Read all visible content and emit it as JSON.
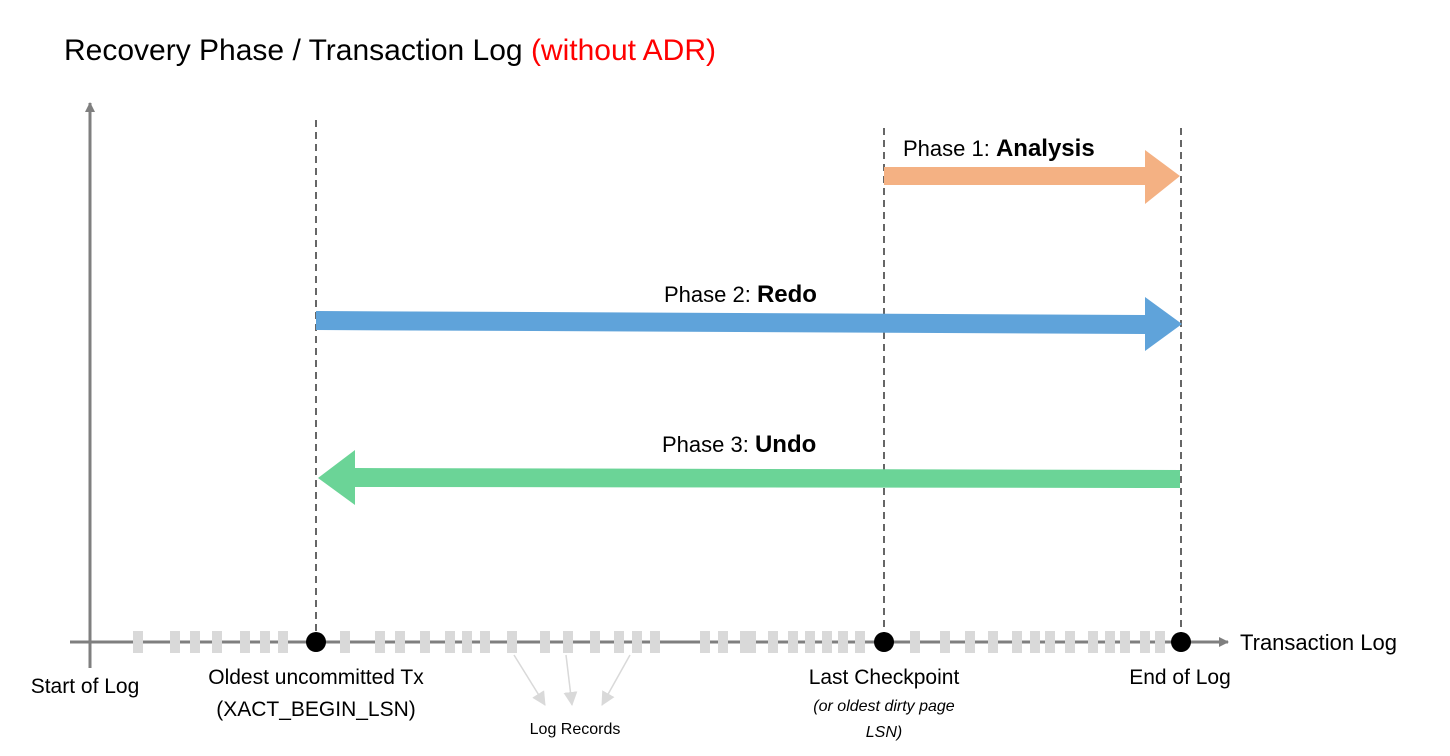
{
  "title": {
    "main": "Recovery Phase / Transaction Log",
    "highlight": "(without ADR)",
    "highlight_color": "#FF0000"
  },
  "phases": [
    {
      "prefix": "Phase 1: ",
      "name": "Analysis",
      "color": "#F4B183",
      "direction": "right"
    },
    {
      "prefix": "Phase 2: ",
      "name": "Redo",
      "color": "#5FA3DA",
      "direction": "right"
    },
    {
      "prefix": "Phase 3: ",
      "name": "Undo",
      "color": "#6BD497",
      "direction": "left"
    }
  ],
  "axis": {
    "x_label": "Transaction Log",
    "y_origin_label": "Start of Log"
  },
  "markers": [
    {
      "label": "Oldest uncommitted Tx",
      "sublabel": "(XACT_BEGIN_LSN)"
    },
    {
      "label": "Last Checkpoint",
      "sublabel_line1": "(or oldest dirty page",
      "sublabel_line2": "LSN)"
    },
    {
      "label": "End of Log"
    }
  ],
  "log_records_label": "Log Records"
}
